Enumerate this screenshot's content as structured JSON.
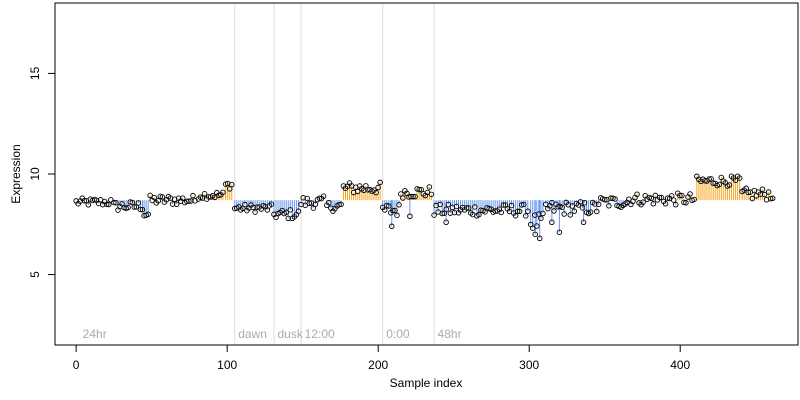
{
  "chart_data": {
    "type": "scatter",
    "title": "",
    "xlabel": "Sample index",
    "ylabel": "Expression",
    "xlim": [
      -14,
      478
    ],
    "ylim": [
      1.5,
      18.5
    ],
    "x_ticks": [
      0,
      100,
      200,
      300,
      400
    ],
    "y_ticks": [
      5,
      10,
      15
    ],
    "baseline": 8.7,
    "grid": false,
    "legend": "none",
    "colors": {
      "above": "#f5a623",
      "below": "#6495ed",
      "point_stroke": "#000000",
      "divider": "#dddddd",
      "annotation": "#aaaaaa"
    },
    "annotations": [
      {
        "x": 3,
        "label": "24hr"
      },
      {
        "x": 106,
        "label": "dawn"
      },
      {
        "x": 132,
        "label": "dusk"
      },
      {
        "x": 150,
        "label": "12:00"
      },
      {
        "x": 204,
        "label": "0:00"
      },
      {
        "x": 238,
        "label": "48hr"
      }
    ],
    "dividers": [
      105,
      131,
      149,
      203,
      237
    ],
    "series": [
      {
        "segments": [
          {
            "x0": 0,
            "x1": 24,
            "level": 8.6,
            "noise": 0.2
          },
          {
            "x0": 25,
            "x1": 44,
            "level": 8.4,
            "noise": 0.25
          },
          {
            "x0": 45,
            "x1": 48,
            "level": 8.0,
            "noise": 0.2
          },
          {
            "x0": 49,
            "x1": 80,
            "level": 8.7,
            "noise": 0.25
          },
          {
            "x0": 81,
            "x1": 98,
            "level": 8.95,
            "noise": 0.2
          },
          {
            "x0": 99,
            "x1": 104,
            "level": 9.45,
            "noise": 0.2
          },
          {
            "x0": 105,
            "x1": 130,
            "level": 8.3,
            "noise": 0.2
          },
          {
            "x0": 131,
            "x1": 148,
            "level": 8.0,
            "noise": 0.25
          },
          {
            "x0": 149,
            "x1": 165,
            "level": 8.6,
            "noise": 0.3
          },
          {
            "x0": 166,
            "x1": 176,
            "level": 8.4,
            "noise": 0.25
          },
          {
            "x0": 177,
            "x1": 202,
            "level": 9.3,
            "noise": 0.3
          },
          {
            "x0": 203,
            "x1": 214,
            "level": 8.2,
            "noise": 0.35
          },
          {
            "x0": 215,
            "x1": 236,
            "level": 9.1,
            "noise": 0.3
          },
          {
            "x0": 237,
            "x1": 300,
            "level": 8.2,
            "noise": 0.3
          },
          {
            "x0": 301,
            "x1": 310,
            "level": 7.6,
            "noise": 0.45
          },
          {
            "x0": 311,
            "x1": 345,
            "level": 8.3,
            "noise": 0.35
          },
          {
            "x0": 346,
            "x1": 365,
            "level": 8.6,
            "noise": 0.3
          },
          {
            "x0": 366,
            "x1": 410,
            "level": 8.75,
            "noise": 0.3
          },
          {
            "x0": 411,
            "x1": 440,
            "level": 9.65,
            "noise": 0.25
          },
          {
            "x0": 441,
            "x1": 462,
            "level": 9.0,
            "noise": 0.3
          }
        ],
        "dips": [
          {
            "x": 209,
            "y": 7.4
          },
          {
            "x": 221,
            "y": 7.9
          },
          {
            "x": 245,
            "y": 7.6
          },
          {
            "x": 304,
            "y": 7.0
          },
          {
            "x": 307,
            "y": 6.8
          },
          {
            "x": 315,
            "y": 7.6
          },
          {
            "x": 320,
            "y": 7.1
          },
          {
            "x": 336,
            "y": 7.6
          }
        ]
      }
    ]
  }
}
